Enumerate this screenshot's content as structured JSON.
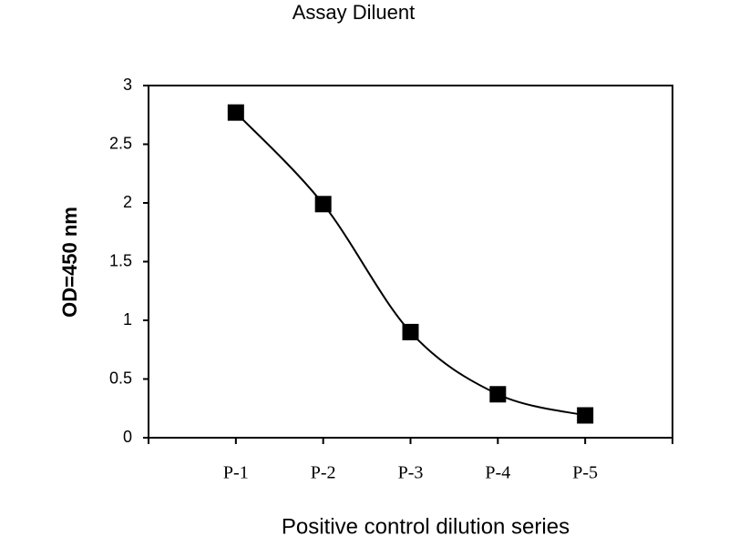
{
  "chart_data": {
    "type": "line",
    "title": "Assay Diluent",
    "x_label": "Positive control dilution series",
    "y_label": "OD=450 nm",
    "categories": [
      "P-1",
      "P-2",
      "P-3",
      "P-4",
      "P-5"
    ],
    "series": [
      {
        "name": "Assay Diluent",
        "color": "#000000",
        "values": [
          2.77,
          1.99,
          0.9,
          0.37,
          0.19
        ]
      }
    ],
    "ylim": [
      0,
      3
    ],
    "yticks": [
      0,
      0.5,
      1,
      1.5,
      2,
      2.5,
      3
    ],
    "smooth": true,
    "marker": "square"
  }
}
